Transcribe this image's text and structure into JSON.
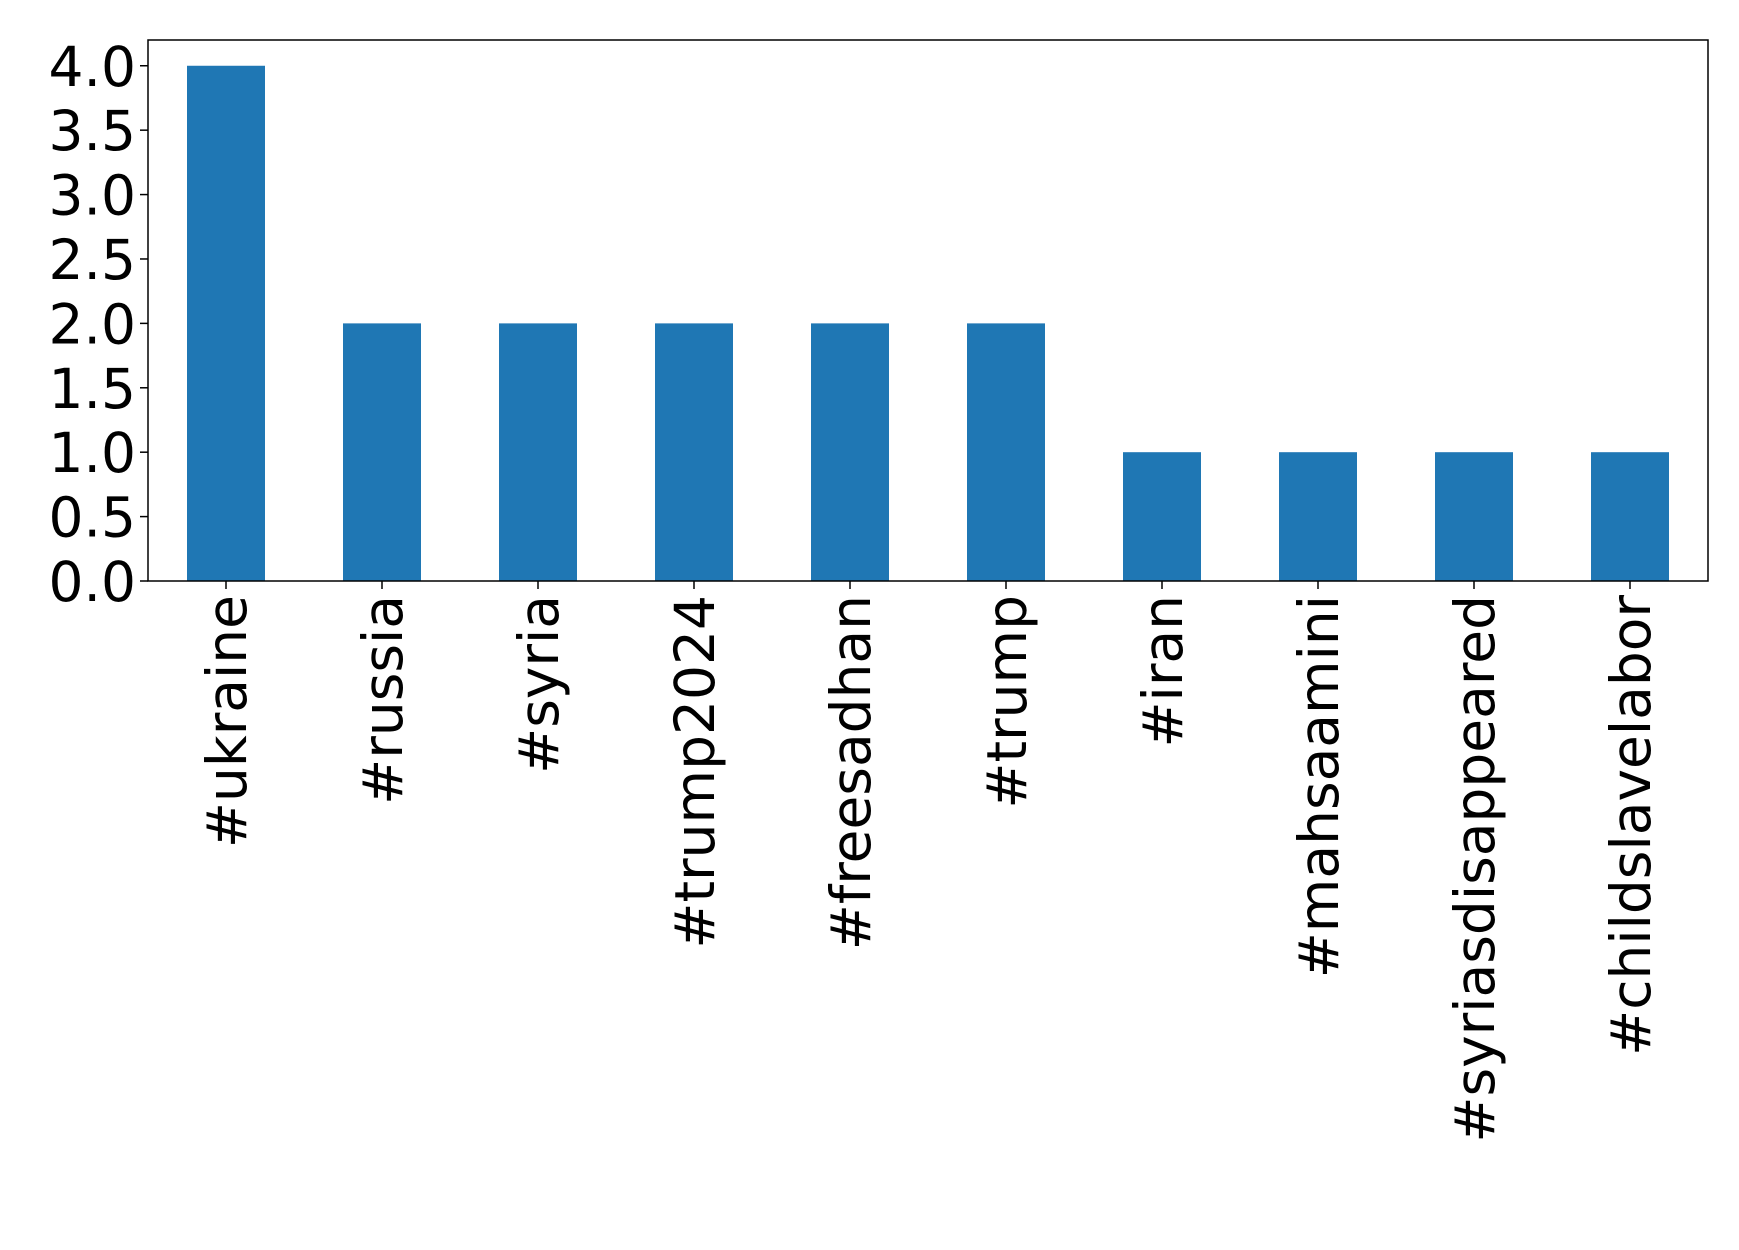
{
  "chart_data": {
    "type": "bar",
    "categories": [
      "#ukraine",
      "#russia",
      "#syria",
      "#trump2024",
      "#freesadhan",
      "#trump",
      "#iran",
      "#mahsaamini",
      "#syriasdisappeared",
      "#childslavelabor"
    ],
    "values": [
      4,
      2,
      2,
      2,
      2,
      2,
      1,
      1,
      1,
      1
    ],
    "color": "#1f77b4",
    "ylim": [
      0,
      4.2
    ],
    "yticks": [
      {
        "value": 0,
        "label": "0.0"
      },
      0.5,
      {
        "value": 1,
        "label": "1.0"
      },
      1.5,
      {
        "value": 2,
        "label": "2.0"
      },
      2.5,
      {
        "value": 3,
        "label": "3.0"
      },
      3.5,
      {
        "value": 4,
        "label": "4.0"
      }
    ],
    "grid": false
  }
}
